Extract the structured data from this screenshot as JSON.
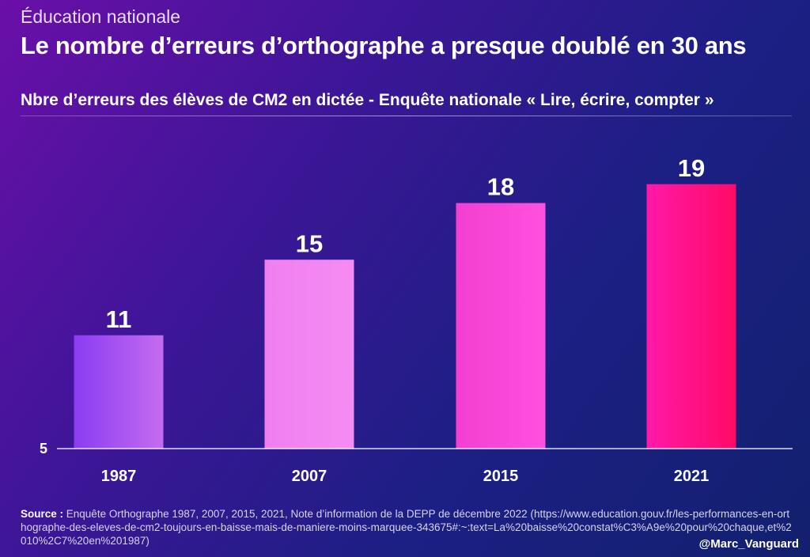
{
  "header": {
    "kicker": "Éducation nationale",
    "title": "Le nombre d’erreurs d’orthographe a presque doublé en 30 ans"
  },
  "chart_data": {
    "type": "bar",
    "title": "Nbre d’erreurs des élèves de CM2 en dictée - Enquête nationale « Lire, écrire, compter »",
    "categories": [
      "1987",
      "2007",
      "2015",
      "2021"
    ],
    "values": [
      11,
      15,
      18,
      19
    ],
    "y_axis_tick": "5",
    "ylim": [
      5,
      21
    ],
    "grid": false,
    "bar_colors": [
      [
        "#8a3cf2",
        "#c46cf0"
      ],
      [
        "#f07ef0",
        "#f58cf2"
      ],
      [
        "#f23fd0",
        "#ff50e0"
      ],
      [
        "#ff1aa8",
        "#ff0a66"
      ]
    ]
  },
  "footer": {
    "source_label": "Source :",
    "source_text": "Enquête Orthographe 1987, 2007, 2015, 2021, Note d’information de la DEPP de décembre 2022 (https://www.education.gouv.fr/les-performances-en-orthographe-des-eleves-de-cm2-toujours-en-baisse-mais-de-maniere-moins-marquee-343675#:~:text=La%20baisse%20constat%C3%A9e%20pour%20chaque,et%2010%2C7%20en%201987)",
    "handle": "@Marc_Vanguard"
  }
}
